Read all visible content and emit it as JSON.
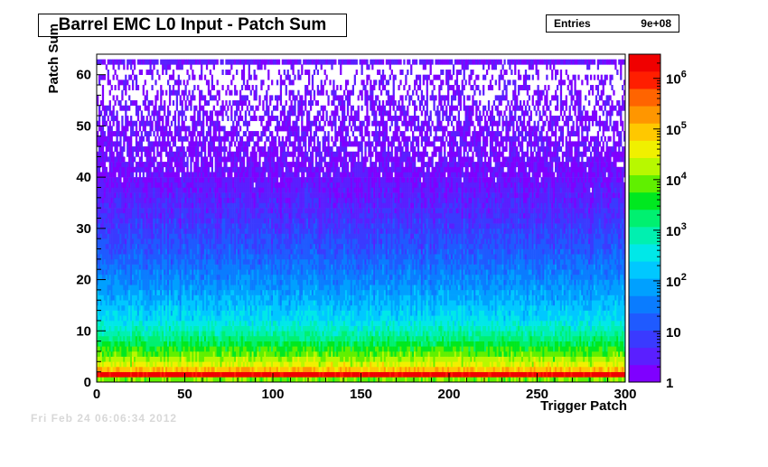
{
  "chart_data": {
    "type": "heatmap",
    "title": "Barrel EMC L0 Input - Patch Sum",
    "xlabel": "Trigger Patch",
    "ylabel": "Patch Sum",
    "xlim": [
      0,
      300
    ],
    "ylim": [
      0,
      64
    ],
    "x_ticks": [
      "0",
      "50",
      "100",
      "150",
      "200",
      "250",
      "300"
    ],
    "y_ticks": [
      "0",
      "10",
      "20",
      "30",
      "40",
      "50",
      "60"
    ],
    "colorbar": {
      "scale": "log",
      "range": [
        1,
        3000000
      ],
      "tick_labels": [
        {
          "value": 1,
          "label": "1"
        },
        {
          "value": 10,
          "label": "10"
        },
        {
          "value": 100,
          "label": "10^2"
        },
        {
          "value": 1000,
          "label": "10^3"
        },
        {
          "value": 10000,
          "label": "10^4"
        },
        {
          "value": 100000,
          "label": "10^5"
        },
        {
          "value": 1000000,
          "label": "10^6"
        }
      ]
    },
    "stats": {
      "entries_label": "Entries",
      "entries_value": "9e+08"
    },
    "profile": {
      "description_of_counts_vs_patch_sum": "approx counts per bin by Patch Sum row",
      "patch_sum": [
        0,
        1,
        2,
        3,
        5,
        8,
        12,
        18,
        25,
        32,
        40,
        50,
        62
      ],
      "typical_count": [
        10000,
        2000000,
        100000,
        30000,
        8000,
        1500,
        250,
        60,
        15,
        5,
        2,
        1,
        2
      ]
    }
  },
  "extra_text": "Fri Feb 24 06:06:34 2012"
}
